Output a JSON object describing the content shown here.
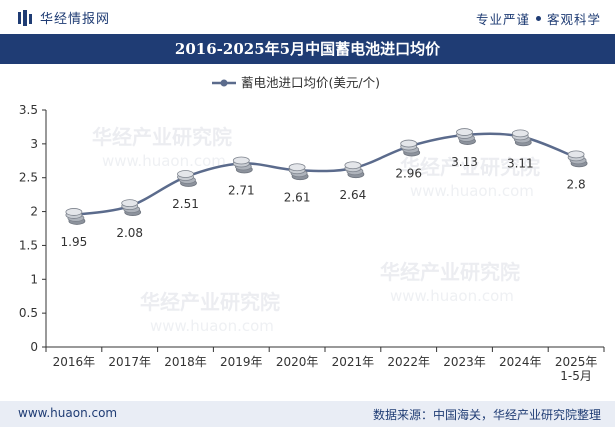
{
  "header": {
    "brand": "华经情报网",
    "tagline_left": "专业严谨",
    "tagline_right": "客观科学"
  },
  "title": "2016-2025年5月中国蓄电池进口均价",
  "colors": {
    "navy": "#1f3c74",
    "line": "#5b6b8c",
    "footer_bg": "#e9edf5",
    "watermark": "#c9ced8"
  },
  "watermark": {
    "cn": "华经产业研究院",
    "en": "www.huaon.com"
  },
  "chart_data": {
    "type": "line",
    "title": "2016-2025年5月中国蓄电池进口均价",
    "legend": "蓄电池进口均价(美元/个)",
    "legend_position": "top-center",
    "categories": [
      "2016年",
      "2017年",
      "2018年",
      "2019年",
      "2020年",
      "2021年",
      "2022年",
      "2023年",
      "2024年",
      "2025年\n1-5月"
    ],
    "series": [
      {
        "name": "蓄电池进口均价(美元/个)",
        "values": [
          1.95,
          2.08,
          2.51,
          2.71,
          2.61,
          2.64,
          2.96,
          3.13,
          3.11,
          2.8
        ]
      }
    ],
    "data_labels": [
      "1.95",
      "2.08",
      "2.51",
      "2.71",
      "2.61",
      "2.64",
      "2.96",
      "3.13",
      "3.11",
      "2.8"
    ],
    "y_ticks": [
      "0",
      "0.5",
      "1",
      "1.5",
      "2",
      "2.5",
      "3",
      "3.5"
    ],
    "ylim": [
      0,
      3.5
    ],
    "xlabel": "",
    "ylabel": "",
    "grid": false
  },
  "footer": {
    "website": "www.huaon.com",
    "source": "数据来源：中国海关，华经产业研究院整理"
  }
}
